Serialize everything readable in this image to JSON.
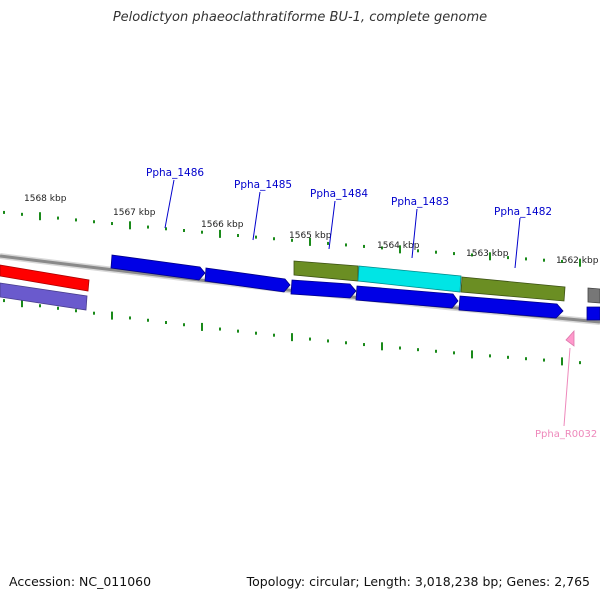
{
  "title": "Pelodictyon phaeoclathratiforme BU-1, complete genome",
  "footer": {
    "accession": "Accession: NC_011060",
    "summary": "Topology: circular; Length: 3,018,238 bp; Genes: 2,765"
  },
  "colors": {
    "backbone": "#8a8a8a",
    "tick": "#1a8a1a",
    "cds_blue": "#0000e6",
    "cds_olive": "#6b8e23",
    "cds_cyan": "#00e5e5",
    "cds_red": "#ff0000",
    "cds_purple": "#6a5acd",
    "gray_feature": "#777777",
    "rna": "#ff99cc",
    "label_blue": "#0000cc",
    "label_pink": "#ee88bb"
  },
  "kbp_labels": [
    "1568 kbp",
    "1567 kbp",
    "1566 kbp",
    "1565 kbp",
    "1564 kbp",
    "1563 kbp",
    "1562 kbp"
  ],
  "gene_labels": [
    "Ppha_1486",
    "Ppha_1485",
    "Ppha_1484",
    "Ppha_1483",
    "Ppha_1482"
  ],
  "rna_label": "Ppha_R0032"
}
